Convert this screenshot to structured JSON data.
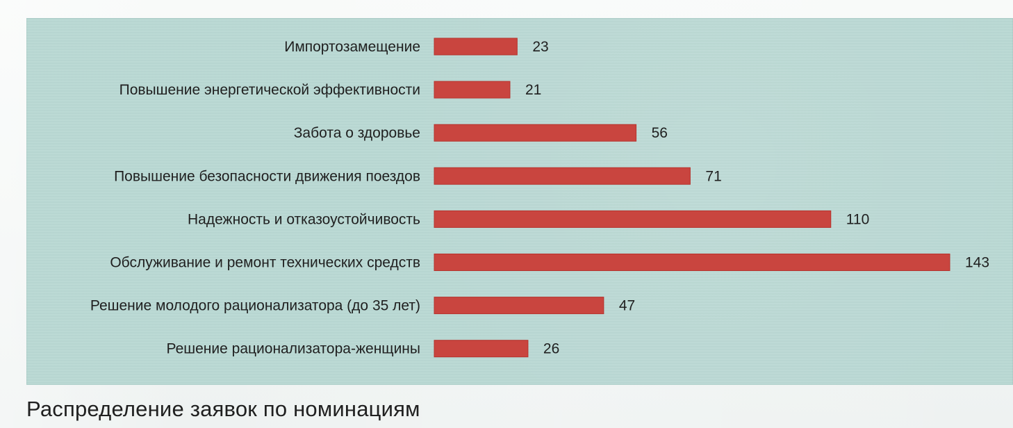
{
  "caption": "Распределение заявок по номинациям",
  "colors": {
    "panel": "#b9d8d3",
    "bar": "#c9453f",
    "text": "#1f1f1f"
  },
  "chart_data": {
    "type": "bar",
    "orientation": "horizontal",
    "categories": [
      "Импортозамещение",
      "Повышение энергетической эффективности",
      "Забота о здоровье",
      "Повышение безопасности движения поездов",
      "Надежность и отказоустойчивость",
      "Обслуживание и ремонт технических средств",
      "Решение молодого рационализатора (до 35 лет)",
      "Решение рационализатора-женщины"
    ],
    "values": [
      23,
      21,
      56,
      71,
      110,
      143,
      47,
      26
    ],
    "data_labels": [
      "23",
      "21",
      "56",
      "71",
      "110",
      "143",
      "47",
      "26"
    ],
    "xlim": [
      0,
      143
    ],
    "grid": false,
    "legend": "none"
  }
}
